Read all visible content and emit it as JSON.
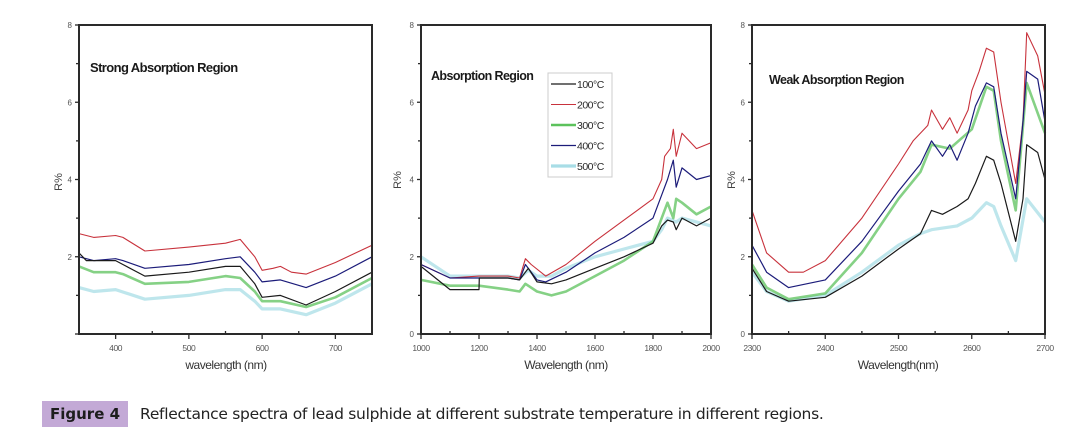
{
  "caption": {
    "label": "Figure 4",
    "text": "Reflectance spectra of lead sulphide at different substrate temperature in different regions."
  },
  "legend": {
    "entries": [
      {
        "name": "100°C",
        "color": "#1a1a1a"
      },
      {
        "name": "200°C",
        "color": "#c8323c"
      },
      {
        "name": "300°C",
        "color": "#5cc25c"
      },
      {
        "name": "400°C",
        "color": "#1c1c7a"
      },
      {
        "name": "500°C",
        "color": "#a8dde6"
      }
    ]
  },
  "chart_data": [
    {
      "type": "line",
      "title": "Strong Absorption Region",
      "xlabel": "wavelength (nm)",
      "ylabel": "R%",
      "xlim": [
        350,
        750
      ],
      "ylim": [
        0,
        8
      ],
      "xticks": [
        400,
        500,
        600,
        700
      ],
      "yticks": [
        0,
        2,
        4,
        6,
        8
      ],
      "ytick_labels": [
        "",
        "2",
        "4",
        "6",
        "8"
      ],
      "grid": false,
      "legend": null,
      "series": [
        {
          "name": "100°C",
          "x": [
            350,
            360,
            400,
            410,
            440,
            500,
            550,
            570,
            590,
            600,
            625,
            660,
            700,
            750
          ],
          "y": [
            2.1,
            1.9,
            1.9,
            1.8,
            1.5,
            1.6,
            1.75,
            1.75,
            1.3,
            0.95,
            1.0,
            0.75,
            1.1,
            1.6
          ]
        },
        {
          "name": "200°C",
          "x": [
            350,
            370,
            400,
            410,
            440,
            500,
            550,
            570,
            590,
            600,
            615,
            625,
            640,
            660,
            700,
            750
          ],
          "y": [
            2.6,
            2.5,
            2.55,
            2.5,
            2.15,
            2.25,
            2.35,
            2.45,
            2.0,
            1.65,
            1.7,
            1.75,
            1.6,
            1.55,
            1.85,
            2.3
          ]
        },
        {
          "name": "300°C",
          "x": [
            350,
            370,
            400,
            410,
            440,
            500,
            550,
            570,
            590,
            600,
            625,
            660,
            700,
            750
          ],
          "y": [
            1.75,
            1.6,
            1.6,
            1.55,
            1.3,
            1.35,
            1.5,
            1.45,
            1.1,
            0.85,
            0.85,
            0.7,
            0.95,
            1.45
          ]
        },
        {
          "name": "400°C",
          "x": [
            350,
            370,
            400,
            410,
            440,
            500,
            550,
            570,
            590,
            600,
            625,
            660,
            700,
            750
          ],
          "y": [
            2.0,
            1.9,
            1.95,
            1.9,
            1.7,
            1.8,
            1.95,
            2.0,
            1.6,
            1.35,
            1.4,
            1.2,
            1.5,
            2.0
          ]
        },
        {
          "name": "500°C",
          "x": [
            350,
            370,
            400,
            440,
            500,
            550,
            570,
            590,
            600,
            625,
            660,
            700,
            750
          ],
          "y": [
            1.2,
            1.1,
            1.15,
            0.9,
            1.0,
            1.15,
            1.15,
            0.85,
            0.65,
            0.65,
            0.5,
            0.8,
            1.3
          ]
        }
      ]
    },
    {
      "type": "line",
      "title": "Absorption Region",
      "xlabel": "Wavelength (nm)",
      "ylabel": "R%",
      "xlim": [
        1000,
        2000
      ],
      "ylim": [
        0,
        8
      ],
      "xticks": [
        1000,
        1200,
        1400,
        1600,
        1800,
        2000
      ],
      "yticks": [
        0,
        2,
        4,
        6,
        8
      ],
      "ytick_labels": [
        "0",
        "2",
        "4",
        "6",
        "8"
      ],
      "grid": false,
      "legend": "top-center",
      "series": [
        {
          "name": "100°C",
          "x": [
            1000,
            1100,
            1200,
            1201,
            1300,
            1340,
            1370,
            1400,
            1450,
            1500,
            1600,
            1700,
            1800,
            1830,
            1850,
            1870,
            1880,
            1900,
            1950,
            2000
          ],
          "y": [
            1.75,
            1.15,
            1.15,
            1.45,
            1.45,
            1.4,
            1.7,
            1.35,
            1.3,
            1.4,
            1.7,
            2.0,
            2.35,
            2.8,
            2.95,
            2.9,
            2.7,
            3.0,
            2.8,
            3.0
          ]
        },
        {
          "name": "200°C",
          "x": [
            1000,
            1100,
            1200,
            1300,
            1340,
            1360,
            1380,
            1430,
            1500,
            1600,
            1700,
            1800,
            1830,
            1840,
            1860,
            1870,
            1880,
            1900,
            1950,
            2000
          ],
          "y": [
            1.8,
            1.45,
            1.5,
            1.5,
            1.45,
            1.95,
            1.8,
            1.5,
            1.8,
            2.4,
            2.95,
            3.5,
            4.0,
            4.6,
            4.8,
            5.3,
            4.6,
            5.2,
            4.8,
            4.95
          ]
        },
        {
          "name": "300°C",
          "x": [
            1000,
            1100,
            1200,
            1300,
            1340,
            1360,
            1400,
            1450,
            1500,
            1600,
            1700,
            1800,
            1830,
            1850,
            1870,
            1880,
            1900,
            1950,
            2000
          ],
          "y": [
            1.4,
            1.25,
            1.25,
            1.15,
            1.1,
            1.3,
            1.1,
            1.0,
            1.1,
            1.5,
            1.9,
            2.4,
            3.0,
            3.4,
            3.0,
            3.5,
            3.4,
            3.1,
            3.3
          ]
        },
        {
          "name": "400°C",
          "x": [
            1000,
            1100,
            1200,
            1300,
            1340,
            1360,
            1400,
            1430,
            1500,
            1600,
            1700,
            1800,
            1830,
            1850,
            1870,
            1880,
            1900,
            1950,
            2000
          ],
          "y": [
            1.8,
            1.45,
            1.45,
            1.45,
            1.4,
            1.8,
            1.4,
            1.35,
            1.6,
            2.1,
            2.5,
            3.0,
            3.6,
            4.0,
            4.5,
            3.8,
            4.3,
            4.0,
            4.1
          ]
        },
        {
          "name": "500°C",
          "x": [
            1000,
            1100,
            1200,
            1300,
            1340,
            1370,
            1400,
            1450,
            1500,
            1600,
            1700,
            1800,
            1830,
            1850,
            1880,
            1900,
            2000
          ],
          "y": [
            2.0,
            1.5,
            1.5,
            1.5,
            1.45,
            1.65,
            1.5,
            1.5,
            1.7,
            2.0,
            2.2,
            2.4,
            2.7,
            3.0,
            2.9,
            3.0,
            2.8
          ]
        }
      ]
    },
    {
      "type": "line",
      "title": "Weak Absorption Region",
      "xlabel": "Wavelength(nm)",
      "ylabel": "R%",
      "xlim": [
        2300,
        2700
      ],
      "ylim": [
        0,
        8
      ],
      "xticks": [
        2300,
        2400,
        2500,
        2600,
        2700
      ],
      "yticks": [
        0,
        2,
        4,
        6,
        8
      ],
      "ytick_labels": [
        "0",
        "2",
        "4",
        "6",
        "8"
      ],
      "grid": false,
      "legend": null,
      "series": [
        {
          "name": "100°C",
          "x": [
            2300,
            2320,
            2350,
            2400,
            2450,
            2500,
            2530,
            2545,
            2560,
            2580,
            2595,
            2605,
            2620,
            2630,
            2640,
            2660,
            2670,
            2675,
            2690,
            2700
          ],
          "y": [
            1.7,
            1.1,
            0.85,
            0.95,
            1.5,
            2.2,
            2.6,
            3.2,
            3.1,
            3.3,
            3.5,
            3.9,
            4.6,
            4.5,
            3.9,
            2.4,
            3.5,
            4.9,
            4.7,
            4.0
          ]
        },
        {
          "name": "200°C",
          "x": [
            2300,
            2320,
            2350,
            2370,
            2400,
            2450,
            2500,
            2520,
            2540,
            2545,
            2560,
            2570,
            2580,
            2595,
            2600,
            2610,
            2620,
            2630,
            2640,
            2660,
            2670,
            2675,
            2690,
            2700
          ],
          "y": [
            3.2,
            2.1,
            1.6,
            1.6,
            1.9,
            3.0,
            4.4,
            5.0,
            5.4,
            5.8,
            5.3,
            5.6,
            5.2,
            5.8,
            6.3,
            6.8,
            7.4,
            7.3,
            6.0,
            3.9,
            5.5,
            7.8,
            7.2,
            6.2
          ]
        },
        {
          "name": "300°C",
          "x": [
            2300,
            2320,
            2350,
            2400,
            2450,
            2500,
            2530,
            2545,
            2570,
            2600,
            2620,
            2630,
            2640,
            2660,
            2675,
            2700
          ],
          "y": [
            1.8,
            1.2,
            0.9,
            1.05,
            2.1,
            3.5,
            4.2,
            4.9,
            4.8,
            5.3,
            6.4,
            6.3,
            5.0,
            3.2,
            6.5,
            5.2
          ]
        },
        {
          "name": "400°C",
          "x": [
            2300,
            2320,
            2350,
            2400,
            2450,
            2500,
            2530,
            2545,
            2560,
            2570,
            2580,
            2595,
            2605,
            2620,
            2630,
            2640,
            2660,
            2670,
            2675,
            2690,
            2700
          ],
          "y": [
            2.3,
            1.6,
            1.2,
            1.4,
            2.4,
            3.7,
            4.4,
            5.0,
            4.6,
            4.9,
            4.5,
            5.2,
            5.9,
            6.5,
            6.4,
            5.2,
            3.5,
            5.5,
            6.8,
            6.6,
            5.5
          ]
        },
        {
          "name": "500°C",
          "x": [
            2300,
            2320,
            2350,
            2400,
            2450,
            2500,
            2530,
            2545,
            2580,
            2600,
            2620,
            2630,
            2640,
            2660,
            2675,
            2700
          ],
          "y": [
            1.6,
            1.1,
            0.85,
            1.0,
            1.6,
            2.3,
            2.6,
            2.7,
            2.8,
            3.0,
            3.4,
            3.3,
            2.8,
            1.9,
            3.5,
            2.9
          ]
        }
      ]
    }
  ]
}
